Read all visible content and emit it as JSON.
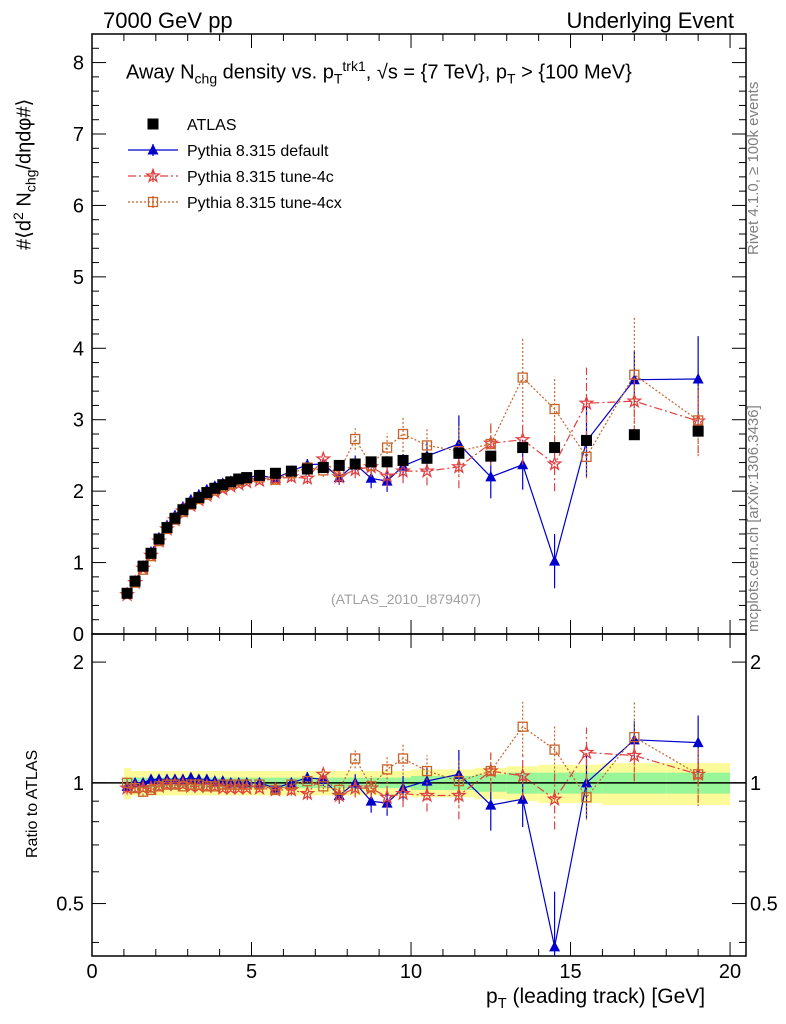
{
  "header": {
    "left": "7000 GeV pp",
    "right": "Underlying Event"
  },
  "side_labels": {
    "rivet": "Rivet 4.1.0, ≥ 100k events",
    "mcplots": "mcplots.cern.ch [arXiv:1306.3436]"
  },
  "plot_title": "Away N_chg density vs. p_T^trk1, √s = {7 TeV}, p_T > {100 MeV}",
  "watermark": "(ATLAS_2010_I879407)",
  "colors": {
    "atlas": "#000000",
    "default": "#0000cc",
    "tune4c": "#e04040",
    "tune4cx": "#c8642a",
    "band_green": "#98f598",
    "band_yellow": "#fbfb9a"
  },
  "chart_data": [
    {
      "type": "line",
      "panel": "main",
      "title": "Away N_chg density vs. p_T^trk1, √s = {7 TeV}, p_T > {100 MeV}",
      "xlabel": "p_T (leading track) [GeV]",
      "ylabel": "#⟨d² N_chg/dηdφ#⟩",
      "xlim": [
        0,
        20.5
      ],
      "ylim": [
        0,
        8.4
      ],
      "x_ticks": [
        "0",
        "5",
        "10",
        "15",
        "20"
      ],
      "y_ticks": [
        "0",
        "1",
        "2",
        "3",
        "4",
        "5",
        "6",
        "7",
        "8"
      ],
      "x": [
        1.1,
        1.35,
        1.6,
        1.85,
        2.1,
        2.35,
        2.6,
        2.85,
        3.1,
        3.35,
        3.6,
        3.85,
        4.1,
        4.35,
        4.6,
        4.85,
        5.25,
        5.75,
        6.25,
        6.75,
        7.25,
        7.75,
        8.25,
        8.75,
        9.25,
        9.75,
        10.5,
        11.5,
        12.5,
        13.5,
        14.5,
        15.5,
        17.0,
        19.0
      ],
      "series": [
        {
          "name": "ATLAS",
          "marker": "square",
          "values": [
            0.57,
            0.74,
            0.95,
            1.13,
            1.33,
            1.49,
            1.62,
            1.74,
            1.83,
            1.91,
            1.98,
            2.04,
            2.09,
            2.13,
            2.17,
            2.19,
            2.22,
            2.25,
            2.28,
            2.31,
            2.33,
            2.36,
            2.38,
            2.41,
            2.41,
            2.43,
            2.46,
            2.53,
            2.49,
            2.61,
            2.61,
            2.71,
            2.79,
            2.84
          ]
        },
        {
          "name": "Pythia 8.315 default",
          "marker": "triangle",
          "values": [
            0.56,
            0.74,
            0.95,
            1.15,
            1.35,
            1.52,
            1.66,
            1.78,
            1.88,
            1.95,
            2.02,
            2.07,
            2.11,
            2.14,
            2.17,
            2.19,
            2.22,
            2.18,
            2.28,
            2.37,
            2.38,
            2.19,
            2.38,
            2.18,
            2.14,
            2.35,
            2.49,
            2.66,
            2.2,
            2.37,
            1.02,
            2.7,
            3.56,
            3.57
          ],
          "errors": [
            0.02,
            0.02,
            0.02,
            0.02,
            0.02,
            0.02,
            0.02,
            0.02,
            0.02,
            0.02,
            0.03,
            0.03,
            0.03,
            0.03,
            0.04,
            0.04,
            0.05,
            0.06,
            0.07,
            0.08,
            0.09,
            0.1,
            0.12,
            0.14,
            0.15,
            0.17,
            0.2,
            0.4,
            0.3,
            0.35,
            0.38,
            0.5,
            0.4,
            0.6
          ]
        },
        {
          "name": "Pythia 8.315 tune-4c",
          "marker": "star",
          "values": [
            0.55,
            0.72,
            0.92,
            1.1,
            1.3,
            1.47,
            1.6,
            1.72,
            1.8,
            1.88,
            1.94,
            1.99,
            2.03,
            2.07,
            2.1,
            2.13,
            2.15,
            2.17,
            2.2,
            2.18,
            2.45,
            2.2,
            2.3,
            2.34,
            2.21,
            2.28,
            2.28,
            2.34,
            2.67,
            2.72,
            2.38,
            3.23,
            3.26,
            2.98
          ],
          "errors": [
            0.02,
            0.02,
            0.02,
            0.02,
            0.02,
            0.02,
            0.02,
            0.02,
            0.02,
            0.02,
            0.03,
            0.03,
            0.03,
            0.03,
            0.04,
            0.04,
            0.05,
            0.06,
            0.07,
            0.08,
            0.09,
            0.1,
            0.12,
            0.14,
            0.15,
            0.17,
            0.2,
            0.3,
            0.3,
            0.35,
            0.38,
            0.5,
            0.45,
            0.45
          ]
        },
        {
          "name": "Pythia 8.315 tune-4cx",
          "marker": "open-square",
          "values": [
            0.57,
            0.72,
            0.9,
            1.09,
            1.3,
            1.47,
            1.6,
            1.71,
            1.81,
            1.89,
            1.95,
            2.01,
            2.06,
            2.1,
            2.14,
            2.17,
            2.19,
            2.16,
            2.25,
            2.33,
            2.29,
            2.27,
            2.73,
            2.36,
            2.61,
            2.8,
            2.64,
            2.56,
            2.66,
            3.59,
            3.15,
            2.48,
            3.63,
            2.99
          ],
          "errors": [
            0.02,
            0.02,
            0.02,
            0.02,
            0.02,
            0.02,
            0.02,
            0.02,
            0.02,
            0.02,
            0.03,
            0.03,
            0.03,
            0.03,
            0.04,
            0.04,
            0.05,
            0.06,
            0.07,
            0.08,
            0.09,
            0.1,
            0.15,
            0.14,
            0.2,
            0.25,
            0.25,
            0.35,
            0.3,
            0.55,
            0.45,
            0.3,
            0.8,
            0.5
          ]
        }
      ]
    },
    {
      "type": "line",
      "panel": "ratio",
      "xlabel": "p_T (leading track) [GeV]",
      "ylabel": "Ratio to ATLAS",
      "xlim": [
        0,
        20.5
      ],
      "ylim": [
        0.37,
        2.35
      ],
      "yscale": "log",
      "y_ticks": [
        "0.5",
        "1",
        "2"
      ],
      "band_x_edges": [
        1.0,
        1.225,
        1.475,
        1.725,
        1.975,
        2.225,
        2.475,
        2.725,
        2.975,
        3.225,
        3.475,
        3.725,
        3.975,
        4.225,
        4.475,
        4.725,
        5.0,
        5.5,
        6.0,
        6.5,
        7.0,
        7.5,
        8.0,
        8.5,
        9.0,
        9.5,
        10.0,
        11.0,
        12.0,
        13.0,
        14.0,
        15.0,
        16.0,
        18.0,
        20.0
      ],
      "band_green_halfwidth": [
        0.03,
        0.03,
        0.03,
        0.03,
        0.03,
        0.03,
        0.03,
        0.03,
        0.03,
        0.03,
        0.03,
        0.03,
        0.03,
        0.03,
        0.03,
        0.03,
        0.03,
        0.03,
        0.03,
        0.03,
        0.03,
        0.03,
        0.03,
        0.03,
        0.03,
        0.03,
        0.04,
        0.04,
        0.05,
        0.06,
        0.06,
        0.06,
        0.06,
        0.06
      ],
      "band_yellow_halfwidth": [
        0.09,
        0.07,
        0.07,
        0.07,
        0.07,
        0.07,
        0.07,
        0.07,
        0.07,
        0.07,
        0.07,
        0.07,
        0.07,
        0.07,
        0.07,
        0.07,
        0.07,
        0.07,
        0.07,
        0.07,
        0.07,
        0.07,
        0.07,
        0.07,
        0.07,
        0.07,
        0.08,
        0.08,
        0.09,
        0.1,
        0.11,
        0.11,
        0.12,
        0.12
      ],
      "x": [
        1.1,
        1.35,
        1.6,
        1.85,
        2.1,
        2.35,
        2.6,
        2.85,
        3.1,
        3.35,
        3.6,
        3.85,
        4.1,
        4.35,
        4.6,
        4.85,
        5.25,
        5.75,
        6.25,
        6.75,
        7.25,
        7.75,
        8.25,
        8.75,
        9.25,
        9.75,
        10.5,
        11.5,
        12.5,
        13.5,
        14.5,
        15.5,
        17.0,
        19.0
      ],
      "series": [
        {
          "name": "Pythia 8.315 default",
          "values": [
            0.98,
            1.0,
            1.0,
            1.02,
            1.02,
            1.02,
            1.02,
            1.02,
            1.03,
            1.02,
            1.02,
            1.01,
            1.01,
            1.0,
            1.0,
            1.0,
            1.0,
            0.97,
            1.0,
            1.03,
            1.02,
            0.93,
            1.0,
            0.9,
            0.89,
            0.97,
            1.01,
            1.05,
            0.88,
            0.91,
            0.39,
            1.0,
            1.28,
            1.26
          ]
        },
        {
          "name": "Pythia 8.315 tune-4c",
          "values": [
            0.97,
            0.97,
            0.97,
            0.97,
            0.98,
            0.99,
            0.99,
            0.99,
            0.98,
            0.98,
            0.98,
            0.98,
            0.97,
            0.97,
            0.97,
            0.97,
            0.97,
            0.96,
            0.96,
            0.94,
            1.05,
            0.93,
            0.97,
            0.97,
            0.92,
            0.94,
            0.93,
            0.93,
            1.07,
            1.04,
            0.91,
            1.19,
            1.17,
            1.05
          ]
        },
        {
          "name": "Pythia 8.315 tune-4cx",
          "values": [
            1.0,
            0.97,
            0.95,
            0.96,
            0.98,
            0.99,
            0.99,
            0.98,
            0.99,
            0.99,
            0.98,
            0.98,
            0.99,
            0.99,
            0.99,
            0.99,
            0.99,
            0.96,
            0.99,
            1.01,
            0.98,
            0.96,
            1.15,
            0.98,
            1.08,
            1.15,
            1.07,
            1.01,
            1.07,
            1.38,
            1.21,
            0.92,
            1.3,
            1.05
          ]
        }
      ]
    }
  ]
}
